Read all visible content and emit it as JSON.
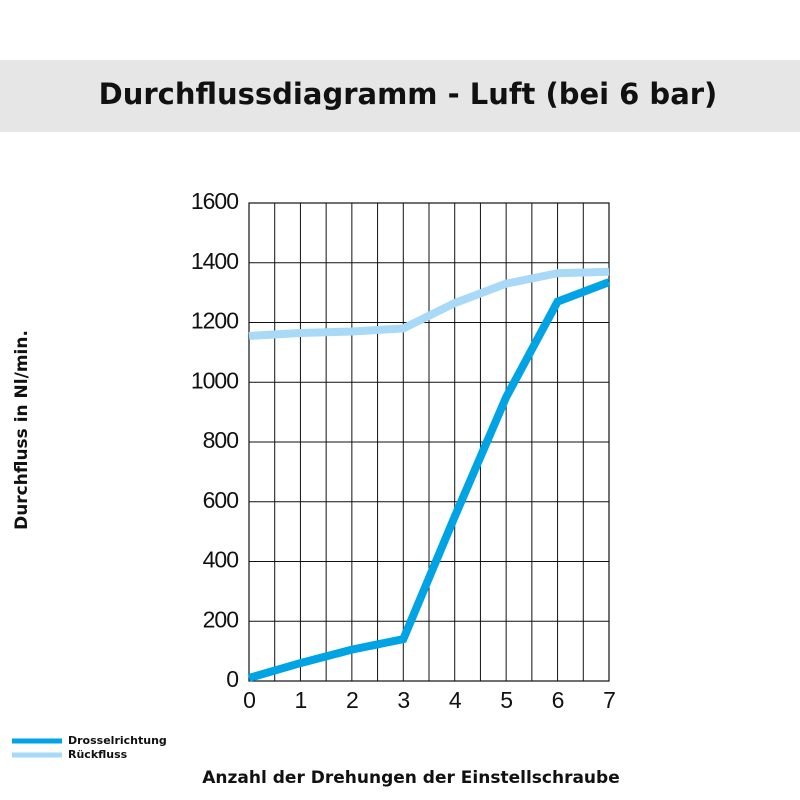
{
  "chart_data": {
    "type": "line",
    "title": "Durchflussdiagramm - Luft (bei 6 bar)",
    "xlabel": "Anzahl der Drehungen der Einstellschraube",
    "ylabel": "Durchfluss in Nl/min.",
    "x": [
      0,
      1,
      2,
      3,
      4,
      5,
      6,
      7
    ],
    "series": [
      {
        "name": "Drosselrichtung",
        "color": "#00a3e4",
        "values": [
          10,
          60,
          105,
          140,
          550,
          950,
          1270,
          1335
        ]
      },
      {
        "name": "Rückfluss",
        "color": "#a8d9f6",
        "values": [
          1155,
          1165,
          1170,
          1180,
          1265,
          1330,
          1365,
          1370
        ]
      }
    ],
    "xlim": [
      0,
      7
    ],
    "ylim": [
      0,
      1600
    ],
    "xticks": [
      0,
      1,
      2,
      3,
      4,
      5,
      6,
      7
    ],
    "yticks": [
      0,
      200,
      400,
      600,
      800,
      1000,
      1200,
      1400,
      1600
    ],
    "grid": true,
    "legend": "bottom-left"
  }
}
